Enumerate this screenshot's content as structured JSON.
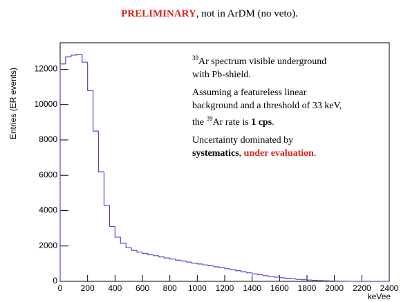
{
  "chart_data": {
    "type": "histogram",
    "title": {
      "highlight": "PRELIMINARY",
      "rest": ", not in ArDM (no veto)."
    },
    "xlabel": "keVee",
    "ylabel": "Entries (ER events)",
    "color": "#5a3fd0",
    "xlim": [
      0,
      2400
    ],
    "ylim": [
      0,
      13500
    ],
    "xticks": [
      0,
      200,
      400,
      600,
      800,
      1000,
      1200,
      1400,
      1600,
      1800,
      2000,
      2200,
      2400
    ],
    "yticks": [
      0,
      2000,
      4000,
      6000,
      8000,
      10000,
      12000
    ],
    "bins": [
      0,
      40,
      80,
      120,
      160,
      200,
      240,
      280,
      320,
      360,
      400,
      440,
      480,
      520,
      560,
      600,
      640,
      680,
      720,
      760,
      800,
      840,
      880,
      920,
      960,
      1000,
      1040,
      1080,
      1120,
      1160,
      1200,
      1240,
      1280,
      1320,
      1360,
      1400,
      1440,
      1480,
      1520,
      1560,
      1600,
      1640,
      1680,
      1720,
      1760,
      1800,
      1840,
      1880,
      1920,
      1960,
      2000,
      2040,
      2080,
      2120,
      2160,
      2200,
      2240,
      2280,
      2320,
      2360,
      2400
    ],
    "counts": [
      12300,
      12700,
      12800,
      12850,
      12400,
      10800,
      8500,
      6200,
      4300,
      3100,
      2500,
      2150,
      1900,
      1750,
      1650,
      1580,
      1500,
      1450,
      1380,
      1320,
      1260,
      1200,
      1150,
      1090,
      1030,
      980,
      930,
      880,
      820,
      770,
      710,
      660,
      600,
      540,
      480,
      420,
      370,
      320,
      280,
      240,
      200,
      170,
      140,
      110,
      90,
      70,
      50,
      40,
      30,
      20,
      15,
      10,
      5,
      3,
      2,
      1,
      0,
      0,
      0,
      0
    ],
    "annotations": [
      [
        [
          {
            "text": "39",
            "style": "sup"
          },
          {
            "text": "Ar spectrum visible underground",
            "style": "plain"
          }
        ],
        [
          {
            "text": "with Pb-shield.",
            "style": "plain"
          }
        ]
      ],
      [
        [
          {
            "text": "Assuming a featureless linear",
            "style": "plain"
          }
        ],
        [
          {
            "text": "background and a threshold of 33 keV,",
            "style": "plain"
          }
        ],
        [
          {
            "text": "the ",
            "style": "plain"
          },
          {
            "text": "39",
            "style": "sup"
          },
          {
            "text": "Ar rate is ",
            "style": "plain"
          },
          {
            "text": "1 cps",
            "style": "bold"
          },
          {
            "text": ".",
            "style": "plain"
          }
        ]
      ],
      [
        [
          {
            "text": "Uncertainty dominated by",
            "style": "plain"
          }
        ],
        [
          {
            "text": "systematics",
            "style": "bold"
          },
          {
            "text": ", ",
            "style": "plain"
          },
          {
            "text": "under evaluation",
            "style": "red-bold"
          },
          {
            "text": ".",
            "style": "plain"
          }
        ]
      ]
    ]
  }
}
